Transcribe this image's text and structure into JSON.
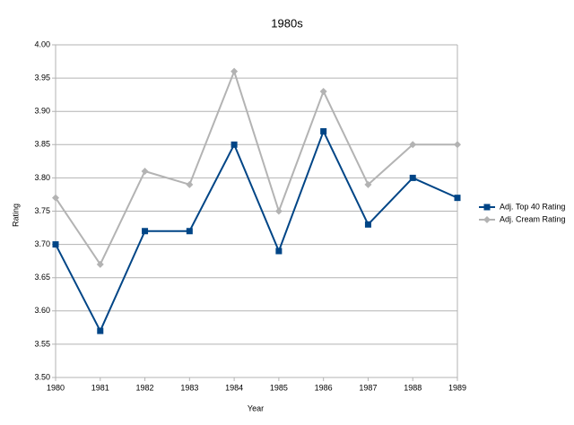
{
  "chart_data": {
    "type": "line",
    "title": "1980s",
    "x_label": "Year",
    "y_label": "Rating",
    "categories": [
      "1980",
      "1981",
      "1982",
      "1983",
      "1984",
      "1985",
      "1986",
      "1987",
      "1988",
      "1989"
    ],
    "series": [
      {
        "name": "Adj. Top 40 Rating",
        "color": "#004586",
        "marker": "square",
        "values": [
          3.7,
          3.57,
          3.72,
          3.72,
          3.85,
          3.69,
          3.87,
          3.73,
          3.8,
          3.77
        ]
      },
      {
        "name": "Adj. Cream Rating",
        "color": "#b3b3b3",
        "marker": "diamond",
        "values": [
          3.77,
          3.67,
          3.81,
          3.79,
          3.96,
          3.75,
          3.93,
          3.79,
          3.85,
          3.85
        ]
      }
    ],
    "ylim": [
      3.5,
      4.0
    ],
    "yticks": [
      {
        "value": 3.5,
        "label": "3.50"
      },
      3.55,
      {
        "value": 3.6,
        "label": "3.60"
      },
      3.65,
      {
        "value": 3.7,
        "label": "3.70"
      },
      3.75,
      {
        "value": 3.8,
        "label": "3.80"
      },
      3.85,
      {
        "value": 3.9,
        "label": "3.90"
      },
      3.95,
      {
        "value": 4.0,
        "label": "4.00"
      }
    ],
    "grid": true,
    "legend": "right"
  }
}
